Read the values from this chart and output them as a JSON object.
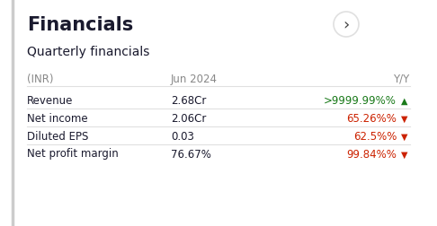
{
  "title": "Financials",
  "subtitle": "Quarterly financials",
  "header": [
    "(INR)",
    "Jun 2024",
    "Y/Y"
  ],
  "rows": [
    {
      "label": "Revenue",
      "value": "2.68Cr",
      "yoy": ">9999.99%",
      "direction": "up",
      "yoy_color": "#1a7a1a"
    },
    {
      "label": "Net income",
      "value": "2.06Cr",
      "yoy": "65.26%",
      "direction": "down",
      "yoy_color": "#cc2200"
    },
    {
      "label": "Diluted EPS",
      "value": "0.03",
      "yoy": "62.5%",
      "direction": "down",
      "yoy_color": "#cc2200"
    },
    {
      "label": "Net profit margin",
      "value": "76.67%",
      "yoy": "99.84%",
      "direction": "down",
      "yoy_color": "#cc2200"
    }
  ],
  "bg_color": "#ffffff",
  "title_color": "#1a1a2e",
  "subtitle_color": "#1a1a2e",
  "header_color": "#888888",
  "label_color": "#1a1a2e",
  "value_color": "#1a1a2e",
  "line_color": "#e0e0e0",
  "arrow_circle_color": "#e0e0e0",
  "arrow_color": "#444444"
}
